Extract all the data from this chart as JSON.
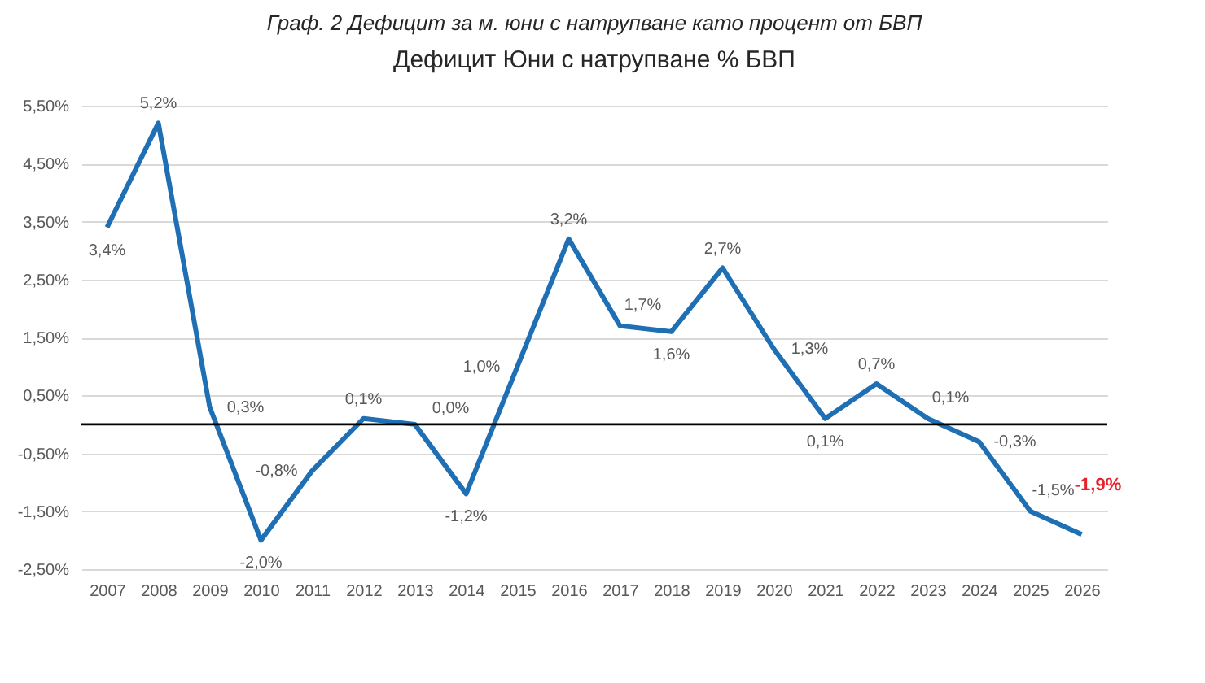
{
  "chart_data": {
    "type": "line",
    "title": "Граф. 2 Дефицит за м. юни с натрупване като процент от БВП",
    "subtitle": "Дефицит Юни с натрупване % БВП",
    "categories": [
      "2007",
      "2008",
      "2009",
      "2010",
      "2011",
      "2012",
      "2013",
      "2014",
      "2015",
      "2016",
      "2017",
      "2018",
      "2019",
      "2020",
      "2021",
      "2022",
      "2023",
      "2024",
      "2025",
      "2026"
    ],
    "series": [
      {
        "color": "#1f6fb4",
        "values": [
          3.4,
          5.2,
          0.3,
          -2.0,
          -0.8,
          0.1,
          0.0,
          -1.2,
          1.0,
          3.2,
          1.7,
          1.6,
          2.7,
          1.3,
          0.1,
          0.7,
          0.1,
          -0.3,
          -1.5,
          -1.9
        ],
        "value_labels": [
          "3,4%",
          "5,2%",
          "0,3%",
          "-2,0%",
          "-0,8%",
          "0,1%",
          "0,0%",
          "-1,2%",
          "1,0%",
          "3,2%",
          "1,7%",
          "1,6%",
          "2,7%",
          "1,3%",
          "0,1%",
          "0,7%",
          "0,1%",
          "-0,3%",
          "-1,5%",
          null
        ]
      }
    ],
    "annotations": [
      {
        "text": "-1,9%",
        "x": "2026",
        "y": -1.9
      }
    ],
    "ylim": [
      -2.5,
      5.5
    ],
    "yticks": [
      {
        "value": -2.5,
        "label": "-2,50%"
      },
      {
        "value": -1.5,
        "label": "-1,50%"
      },
      {
        "value": -0.5,
        "label": "-0,50%"
      },
      {
        "value": 0.5,
        "label": "0,50%"
      },
      {
        "value": 1.5,
        "label": "1,50%"
      },
      {
        "value": 2.5,
        "label": "2,50%"
      },
      {
        "value": 3.5,
        "label": "3,50%"
      },
      {
        "value": 4.5,
        "label": "4,50%"
      },
      {
        "value": 5.5,
        "label": "5,50%"
      }
    ],
    "ref_lines": [
      {
        "axis": "y",
        "value": 0,
        "color": "#000000"
      }
    ],
    "grid": "y",
    "legend": false,
    "marker": "none",
    "line_style": "solid"
  }
}
